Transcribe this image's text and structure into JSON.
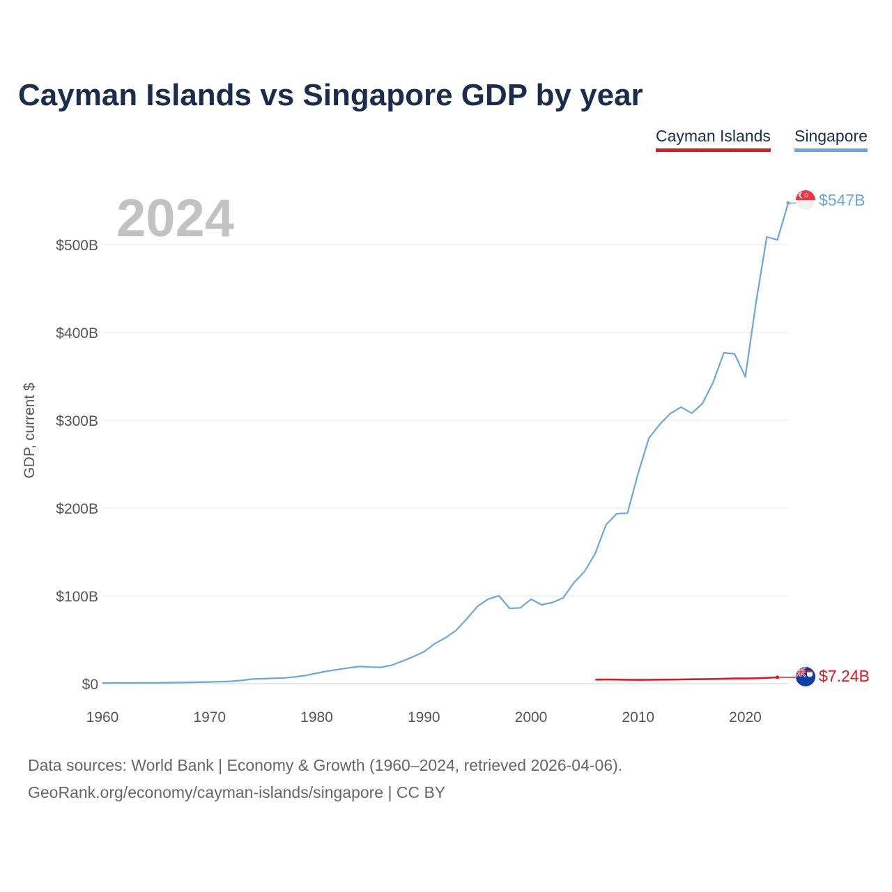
{
  "title": "Cayman Islands vs Singapore GDP by year",
  "legend": [
    {
      "label": "Cayman Islands",
      "color": "#e8141c"
    },
    {
      "label": "Singapore",
      "color": "#6aa6e4"
    }
  ],
  "footer": {
    "line1": "Data sources: World Bank | Economy & Growth (1960–2024, retrieved 2026-04-06).",
    "line2": "GeoRank.org/economy/cayman-islands/singapore | CC BY"
  },
  "chart_data": {
    "type": "line",
    "title": "Cayman Islands vs Singapore GDP by year",
    "year_label": "2024",
    "xlabel": "",
    "ylabel": "GDP, current $",
    "xlim": [
      1960,
      2024
    ],
    "ylim": [
      0,
      550
    ],
    "unit": "billion current US$",
    "x_ticks": [
      1960,
      1970,
      1980,
      1990,
      2000,
      2010,
      2020
    ],
    "y_ticks": [
      {
        "value": 0,
        "label": "$0"
      },
      {
        "value": 100,
        "label": "$100B"
      },
      {
        "value": 200,
        "label": "$200B"
      },
      {
        "value": 300,
        "label": "$300B"
      },
      {
        "value": 400,
        "label": "$400B"
      },
      {
        "value": 500,
        "label": "$500B"
      }
    ],
    "grid": true,
    "legend_position": "top-right",
    "series": [
      {
        "name": "Singapore",
        "color": "#6aa6e4",
        "end_label": "$547B",
        "points": [
          [
            1960,
            0.7
          ],
          [
            1961,
            0.76
          ],
          [
            1962,
            0.82
          ],
          [
            1963,
            0.92
          ],
          [
            1964,
            0.89
          ],
          [
            1965,
            0.97
          ],
          [
            1966,
            1.08
          ],
          [
            1967,
            1.24
          ],
          [
            1968,
            1.43
          ],
          [
            1969,
            1.7
          ],
          [
            1970,
            1.92
          ],
          [
            1971,
            2.26
          ],
          [
            1972,
            2.72
          ],
          [
            1973,
            3.69
          ],
          [
            1974,
            5.22
          ],
          [
            1975,
            5.62
          ],
          [
            1976,
            6.1
          ],
          [
            1977,
            6.48
          ],
          [
            1978,
            7.69
          ],
          [
            1979,
            9.48
          ],
          [
            1980,
            11.9
          ],
          [
            1981,
            14.3
          ],
          [
            1982,
            16.1
          ],
          [
            1983,
            18.0
          ],
          [
            1984,
            19.6
          ],
          [
            1985,
            18.9
          ],
          [
            1986,
            18.6
          ],
          [
            1987,
            21.0
          ],
          [
            1988,
            25.6
          ],
          [
            1989,
            30.6
          ],
          [
            1990,
            36.2
          ],
          [
            1991,
            45.5
          ],
          [
            1992,
            52.1
          ],
          [
            1993,
            60.6
          ],
          [
            1994,
            73.7
          ],
          [
            1995,
            87.9
          ],
          [
            1996,
            96.3
          ],
          [
            1997,
            100.1
          ],
          [
            1998,
            85.7
          ],
          [
            1999,
            86.3
          ],
          [
            2000,
            96.1
          ],
          [
            2001,
            89.8
          ],
          [
            2002,
            92.5
          ],
          [
            2003,
            97.6
          ],
          [
            2004,
            115.0
          ],
          [
            2005,
            127.8
          ],
          [
            2006,
            148.6
          ],
          [
            2007,
            180.9
          ],
          [
            2008,
            193.6
          ],
          [
            2009,
            194.2
          ],
          [
            2010,
            239.8
          ],
          [
            2011,
            279.4
          ],
          [
            2012,
            295.1
          ],
          [
            2013,
            307.6
          ],
          [
            2014,
            314.9
          ],
          [
            2015,
            308.0
          ],
          [
            2016,
            319.0
          ],
          [
            2017,
            343.3
          ],
          [
            2018,
            376.9
          ],
          [
            2019,
            375.5
          ],
          [
            2020,
            349.5
          ],
          [
            2021,
            434.1
          ],
          [
            2022,
            508.7
          ],
          [
            2023,
            505.4
          ],
          [
            2024,
            547.4
          ]
        ]
      },
      {
        "name": "Cayman Islands",
        "color": "#e8141c",
        "end_label": "$7.24B",
        "points": [
          [
            2006,
            4.5
          ],
          [
            2007,
            4.7
          ],
          [
            2008,
            4.6
          ],
          [
            2009,
            4.4
          ],
          [
            2010,
            4.3
          ],
          [
            2011,
            4.4
          ],
          [
            2012,
            4.5
          ],
          [
            2013,
            4.6
          ],
          [
            2014,
            4.8
          ],
          [
            2015,
            5.0
          ],
          [
            2016,
            5.1
          ],
          [
            2017,
            5.3
          ],
          [
            2018,
            5.6
          ],
          [
            2019,
            5.9
          ],
          [
            2020,
            5.9
          ],
          [
            2021,
            6.1
          ],
          [
            2022,
            6.6
          ],
          [
            2023,
            7.24
          ]
        ]
      }
    ]
  }
}
